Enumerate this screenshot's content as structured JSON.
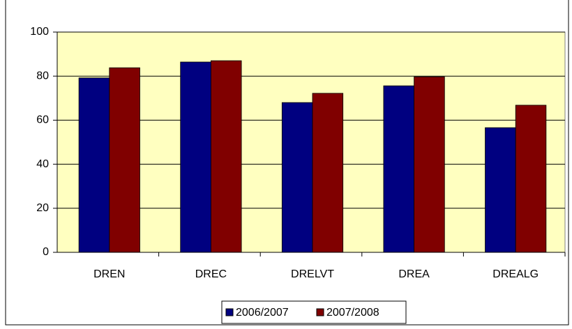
{
  "chart_data": {
    "type": "bar",
    "categories": [
      "DREN",
      "DREC",
      "DRELVT",
      "DREA",
      "DREALG"
    ],
    "series": [
      {
        "name": "2006/2007",
        "color": "#000080",
        "values": [
          79.2,
          86.4,
          68,
          75.6,
          56.6
        ]
      },
      {
        "name": "2007/2008",
        "color": "#800000",
        "values": [
          83.8,
          87,
          72.2,
          79.7,
          66.8
        ]
      }
    ],
    "ylim": [
      0,
      100
    ],
    "yticks": [
      0,
      20,
      40,
      60,
      80,
      100
    ],
    "grid": true,
    "legend": "bottom",
    "plot_background": "#ffffc0"
  }
}
